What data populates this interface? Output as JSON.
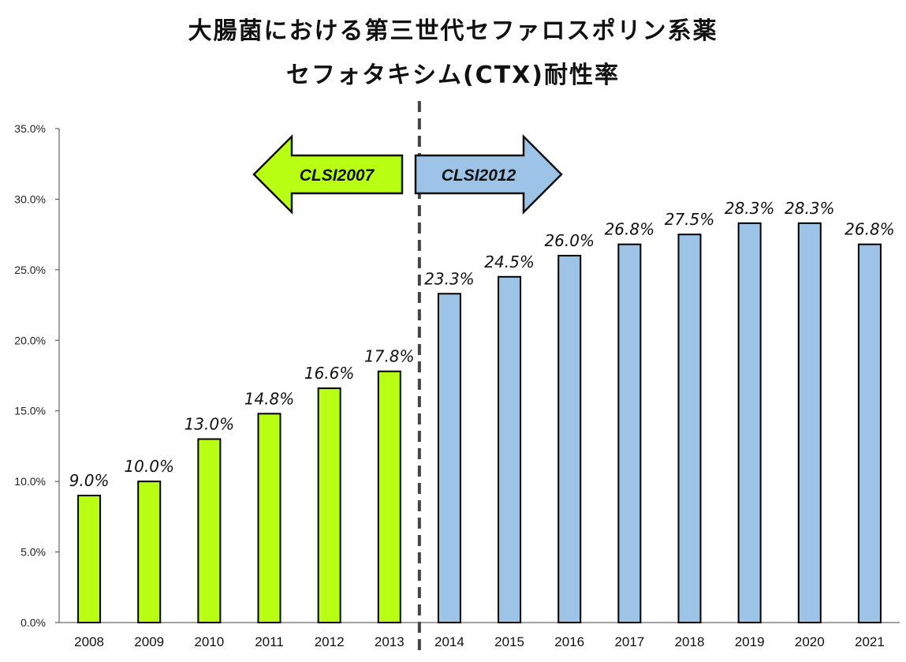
{
  "title_line1": "大腸菌における第三世代セファロスポリン系薬",
  "title_line2": "セフォタキシム(CTX)耐性率",
  "arrows": {
    "left_label": "CLSI2007",
    "right_label": "CLSI2012",
    "left_color": "#b8ff14",
    "right_color": "#9dc3e6"
  },
  "chart_data": {
    "type": "bar",
    "title": "大腸菌における第三世代セファロスポリン系薬 セフォタキシム(CTX)耐性率",
    "categories": [
      "2008",
      "2009",
      "2010",
      "2011",
      "2012",
      "2013",
      "2014",
      "2015",
      "2016",
      "2017",
      "2018",
      "2019",
      "2020",
      "2021"
    ],
    "values": [
      9.0,
      10.0,
      13.0,
      14.8,
      16.6,
      17.8,
      23.3,
      24.5,
      26.0,
      26.8,
      27.5,
      28.3,
      28.3,
      26.8
    ],
    "data_labels": [
      "9.0%",
      "10.0%",
      "13.0%",
      "14.8%",
      "16.6%",
      "17.8%",
      "23.3%",
      "24.5%",
      "26.0%",
      "26.8%",
      "27.5%",
      "28.3%",
      "28.3%",
      "26.8%"
    ],
    "groups": [
      {
        "name": "CLSI2007",
        "start_index": 0,
        "end_index": 5,
        "color": "#b8ff14"
      },
      {
        "name": "CLSI2012",
        "start_index": 6,
        "end_index": 13,
        "color": "#9dc3e6"
      }
    ],
    "ylim": [
      0,
      35
    ],
    "yticks": [
      0,
      5,
      10,
      15,
      20,
      25,
      30,
      35
    ],
    "ytick_labels": [
      "0.0%",
      "5.0%",
      "10.0%",
      "15.0%",
      "20.0%",
      "25.0%",
      "30.0%",
      "35.0%"
    ],
    "divider_between": [
      "2013",
      "2014"
    ],
    "xlabel": "",
    "ylabel": "",
    "grid": false
  }
}
